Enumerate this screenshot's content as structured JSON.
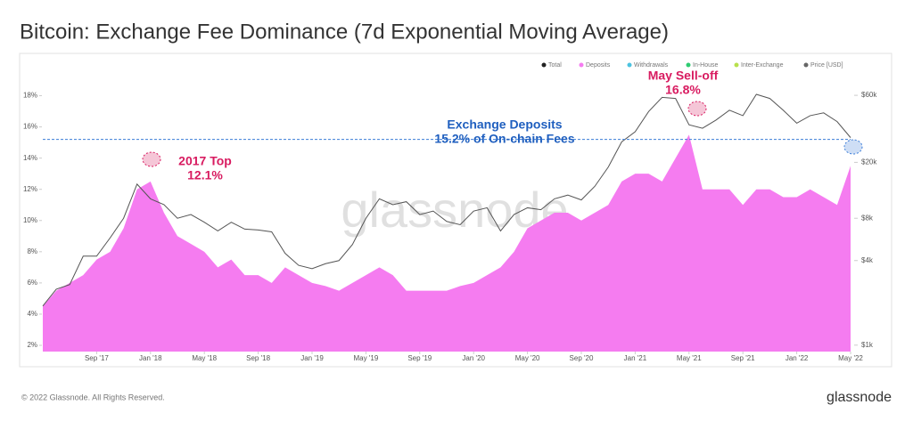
{
  "chart_data": {
    "type": "area",
    "title": "Bitcoin: Exchange Fee Dominance (7d Exponential Moving Average)",
    "watermark": "glassnode",
    "footer": "© 2022 Glassnode. All Rights Reserved.",
    "logo": "glassnode",
    "x": [
      "2017-05",
      "2017-06",
      "2017-07",
      "2017-08",
      "2017-09",
      "2017-10",
      "2017-11",
      "2017-12",
      "2018-01",
      "2018-02",
      "2018-03",
      "2018-04",
      "2018-05",
      "2018-06",
      "2018-07",
      "2018-08",
      "2018-09",
      "2018-10",
      "2018-11",
      "2018-12",
      "2019-01",
      "2019-02",
      "2019-03",
      "2019-04",
      "2019-05",
      "2019-06",
      "2019-07",
      "2019-08",
      "2019-09",
      "2019-10",
      "2019-11",
      "2019-12",
      "2020-01",
      "2020-02",
      "2020-03",
      "2020-04",
      "2020-05",
      "2020-06",
      "2020-07",
      "2020-08",
      "2020-09",
      "2020-10",
      "2020-11",
      "2020-12",
      "2021-01",
      "2021-02",
      "2021-03",
      "2021-04",
      "2021-05",
      "2021-06",
      "2021-07",
      "2021-08",
      "2021-09",
      "2021-10",
      "2021-11",
      "2021-12",
      "2022-01",
      "2022-02",
      "2022-03",
      "2022-04",
      "2022-05"
    ],
    "xticks": [
      {
        "value": "2017-09",
        "label": "Sep '17"
      },
      {
        "value": "2018-01",
        "label": "Jan '18"
      },
      {
        "value": "2018-05",
        "label": "May '18"
      },
      {
        "value": "2018-09",
        "label": "Sep '18"
      },
      {
        "value": "2019-01",
        "label": "Jan '19"
      },
      {
        "value": "2019-05",
        "label": "May '19"
      },
      {
        "value": "2019-09",
        "label": "Sep '19"
      },
      {
        "value": "2020-01",
        "label": "Jan '20"
      },
      {
        "value": "2020-05",
        "label": "May '20"
      },
      {
        "value": "2020-09",
        "label": "Sep '20"
      },
      {
        "value": "2021-01",
        "label": "Jan '21"
      },
      {
        "value": "2021-05",
        "label": "May '21"
      },
      {
        "value": "2021-09",
        "label": "Sep '21"
      },
      {
        "value": "2022-01",
        "label": "Jan '22"
      },
      {
        "value": "2022-05",
        "label": "May '22"
      }
    ],
    "ylim": [
      1.6,
      19
    ],
    "yticks": [
      {
        "value": 2,
        "label": "2%"
      },
      {
        "value": 4,
        "label": "4%"
      },
      {
        "value": 6,
        "label": "6%"
      },
      {
        "value": 8,
        "label": "8%"
      },
      {
        "value": 10,
        "label": "10%"
      },
      {
        "value": 12,
        "label": "12%"
      },
      {
        "value": 14,
        "label": "14%"
      },
      {
        "value": 16,
        "label": "16%"
      },
      {
        "value": 18,
        "label": "18%"
      }
    ],
    "y2lim": [
      900,
      77000
    ],
    "y2_log": true,
    "y2ticks": [
      {
        "value": 1000,
        "label": "$1k"
      },
      {
        "value": 4000,
        "label": "$4k"
      },
      {
        "value": 8000,
        "label": "$8k"
      },
      {
        "value": 20000,
        "label": "$20k"
      },
      {
        "value": 60000,
        "label": "$60k"
      }
    ],
    "legend": [
      {
        "name": "Total",
        "color": "#222222"
      },
      {
        "name": "Deposits",
        "color": "#f57cf0"
      },
      {
        "name": "Withdrawals",
        "color": "#4cc3e0"
      },
      {
        "name": "In-House",
        "color": "#2ecc71"
      },
      {
        "name": "Inter-Exchange",
        "color": "#b8e04c"
      },
      {
        "name": "Price [USD]",
        "color": "#666666"
      }
    ],
    "series": [
      {
        "kind": "area",
        "color": "#f57cf0",
        "values": [
          4.5,
          5.5,
          6,
          6.5,
          7.5,
          8,
          9.5,
          12,
          12.5,
          10.5,
          9,
          8.5,
          8,
          7,
          7.5,
          6.5,
          6.5,
          6,
          7,
          6.5,
          6,
          5.8,
          5.5,
          6,
          6.5,
          7,
          6.5,
          5.5,
          5.5,
          5.5,
          5.5,
          5.8,
          6,
          6.5,
          7,
          8,
          9.5,
          10,
          10.5,
          10.5,
          10,
          10.5,
          11,
          12.5,
          13,
          13,
          12.5,
          14,
          15.5,
          12,
          12,
          12,
          11,
          12,
          12,
          11.5,
          11.5,
          12,
          11.5,
          11,
          13.5
        ]
      },
      {
        "kind": "line",
        "axis": "y2",
        "color": "#555555",
        "values": [
          1900,
          2500,
          2700,
          4300,
          4300,
          5800,
          8000,
          14000,
          11000,
          10000,
          8000,
          8500,
          7500,
          6500,
          7500,
          6700,
          6600,
          6400,
          4500,
          3700,
          3500,
          3800,
          4000,
          5200,
          8000,
          11000,
          10000,
          10500,
          8500,
          9000,
          7600,
          7200,
          9000,
          9500,
          6500,
          8500,
          9500,
          9200,
          11000,
          11700,
          10800,
          13500,
          18500,
          28000,
          33000,
          46000,
          58000,
          57000,
          37000,
          35000,
          40000,
          47000,
          43000,
          61000,
          57000,
          47000,
          38000,
          43000,
          45000,
          39000,
          30000
        ]
      }
    ],
    "reference_line": {
      "value": 15.2,
      "color": "#3b7dd8"
    },
    "annotations": [
      {
        "lines": [
          "2017 Top",
          "12.1%"
        ],
        "color": "#d81b60"
      },
      {
        "lines": [
          "Exchange Deposits",
          "15.2% of On-chain Fees"
        ],
        "color": "#1f5fbf"
      },
      {
        "lines": [
          "May Sell-off",
          "16.8%"
        ],
        "color": "#d81b60"
      }
    ]
  }
}
